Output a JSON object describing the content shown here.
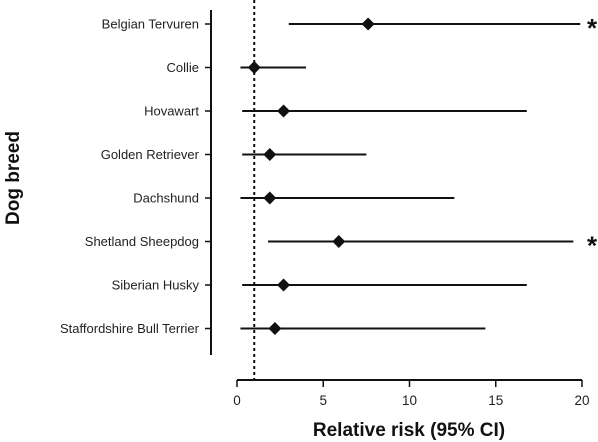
{
  "chart_data": {
    "type": "forest",
    "xlabel": "Relative risk (95% CI)",
    "ylabel": "Dog breed",
    "xlim": [
      0,
      20
    ],
    "xticks": [
      0,
      5,
      10,
      15,
      20
    ],
    "reference_line": 1,
    "rows": [
      {
        "name": "Belgian Tervuren",
        "value": 7.6,
        "low": 3.0,
        "high": 19.9,
        "significant": true
      },
      {
        "name": "Collie",
        "value": 1.0,
        "low": 0.2,
        "high": 4.0,
        "significant": false
      },
      {
        "name": "Hovawart",
        "value": 2.7,
        "low": 0.3,
        "high": 16.8,
        "significant": false
      },
      {
        "name": "Golden Retriever",
        "value": 1.9,
        "low": 0.3,
        "high": 7.5,
        "significant": false
      },
      {
        "name": "Dachshund",
        "value": 1.9,
        "low": 0.2,
        "high": 12.6,
        "significant": false
      },
      {
        "name": "Shetland Sheepdog",
        "value": 5.9,
        "low": 1.8,
        "high": 19.5,
        "significant": true
      },
      {
        "name": "Siberian Husky",
        "value": 2.7,
        "low": 0.3,
        "high": 16.8,
        "significant": false
      },
      {
        "name": "Staffordshire Bull Terrier",
        "value": 2.2,
        "low": 0.2,
        "high": 14.4,
        "significant": false
      }
    ],
    "significance_marker": "*"
  }
}
